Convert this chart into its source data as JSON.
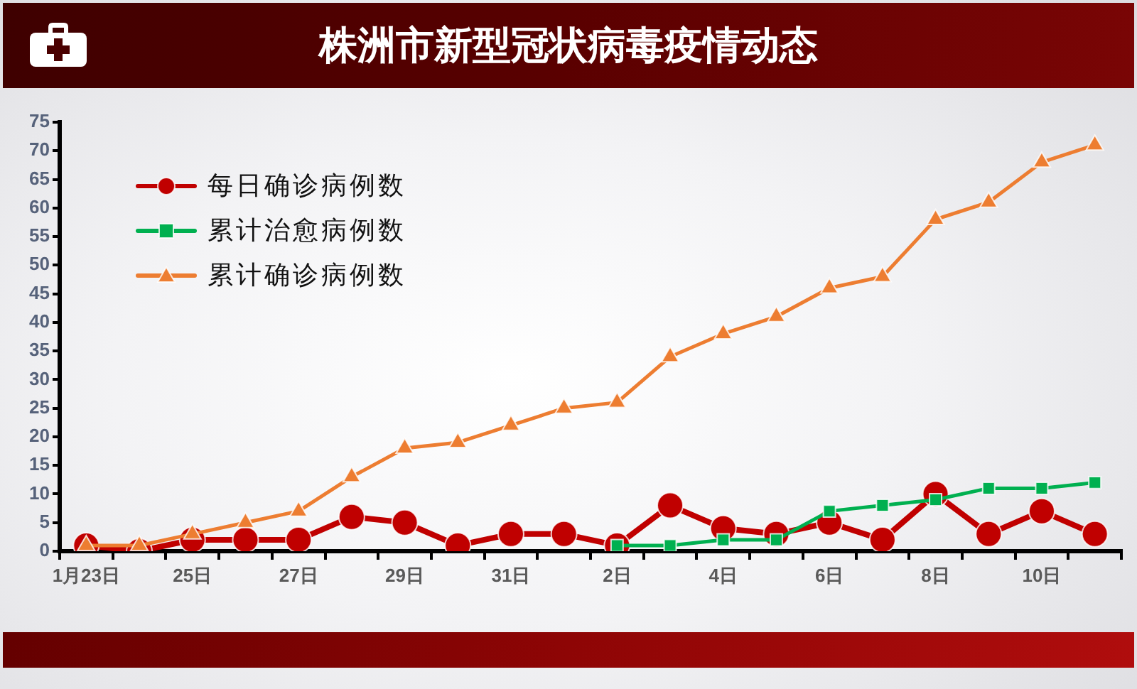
{
  "chart_data": {
    "type": "line",
    "title": "株洲市新型冠状病毒疫情动态",
    "categories": [
      "1月23日",
      null,
      "25日",
      null,
      "27日",
      null,
      "29日",
      null,
      "31日",
      null,
      "2日",
      null,
      "4日",
      null,
      "6日",
      null,
      "8日",
      null,
      "10日",
      null
    ],
    "series": [
      {
        "name": "每日确诊病例数",
        "color": "#c00000",
        "marker": "circle",
        "values": [
          1,
          0,
          2,
          2,
          2,
          6,
          5,
          1,
          3,
          3,
          1,
          8,
          4,
          3,
          5,
          2,
          10,
          3,
          7,
          3
        ]
      },
      {
        "name": "累计治愈病例数",
        "color": "#00b050",
        "marker": "square",
        "values": [
          null,
          null,
          null,
          null,
          null,
          null,
          null,
          null,
          null,
          null,
          1,
          1,
          2,
          2,
          7,
          8,
          9,
          11,
          11,
          12
        ]
      },
      {
        "name": "累计确诊病例数",
        "color": "#ed7d31",
        "marker": "triangle",
        "values": [
          1,
          1,
          3,
          5,
          7,
          13,
          18,
          19,
          22,
          25,
          26,
          34,
          38,
          41,
          46,
          48,
          58,
          61,
          68,
          71
        ]
      }
    ],
    "ylim": [
      0,
      75
    ],
    "yticks": [
      0,
      5,
      10,
      15,
      20,
      25,
      30,
      35,
      40,
      45,
      50,
      55,
      60,
      65,
      70,
      75
    ],
    "legend": "top left"
  }
}
